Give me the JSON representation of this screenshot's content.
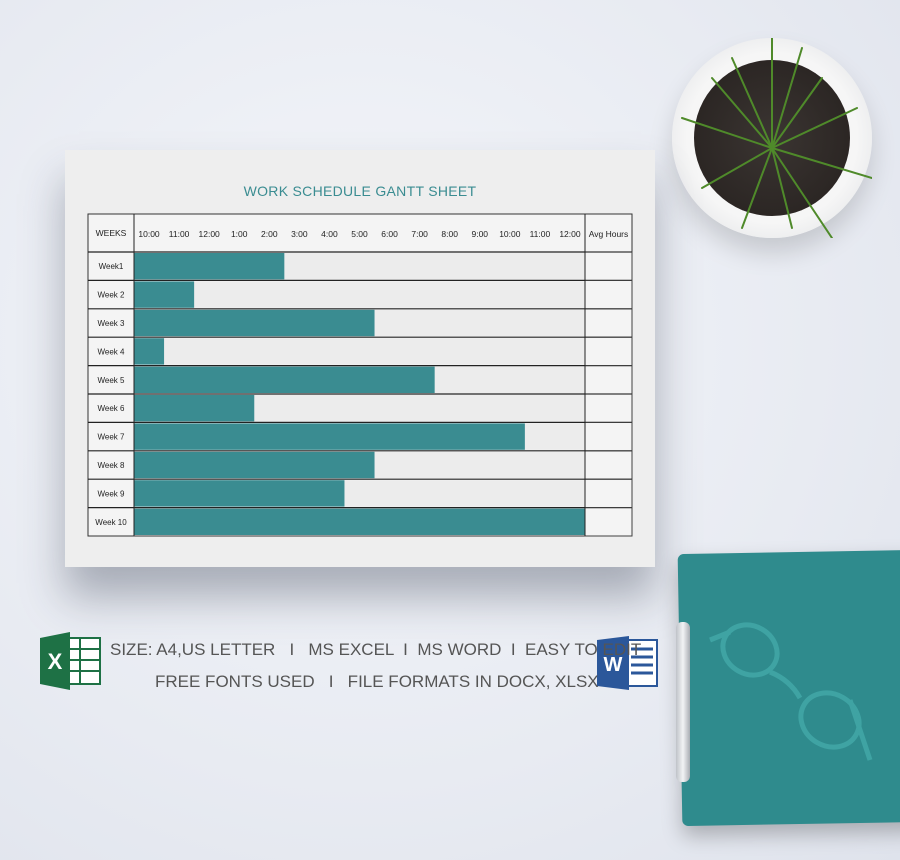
{
  "chart_data": {
    "type": "gantt",
    "title": "WORK SCHEDULE GANTT SHEET",
    "row_header": "WEEKS",
    "extra_column": "Avg Hours",
    "time_ticks": [
      "10:00",
      "11:00",
      "12:00",
      "1:00",
      "2:00",
      "3:00",
      "4:00",
      "5:00",
      "6:00",
      "7:00",
      "8:00",
      "9:00",
      "10:00",
      "11:00",
      "12:00"
    ],
    "categories": [
      "Week1",
      "Week 2",
      "Week 3",
      "Week 4",
      "Week 5",
      "Week 6",
      "Week 7",
      "Week 8",
      "Week 9",
      "Week 10"
    ],
    "values_hours": [
      5,
      2,
      8,
      1,
      10,
      4,
      13,
      8,
      7,
      15
    ],
    "xlim_hours": [
      0,
      15
    ],
    "bar_color": "#3a8c91",
    "empty_color": "#ececec"
  },
  "features": {
    "line1": "SIZE: A4,US LETTER   I   MS EXCEL  I  MS WORD  I  EASY TO EDIT",
    "line2": "FREE FONTS USED   I   FILE FORMATS IN DOCX, XLSX"
  },
  "icons": {
    "excel": "excel-icon",
    "word": "word-icon"
  },
  "colors": {
    "teal": "#2f8b8d",
    "excel_green": "#1e7145",
    "word_blue": "#2b579a"
  }
}
